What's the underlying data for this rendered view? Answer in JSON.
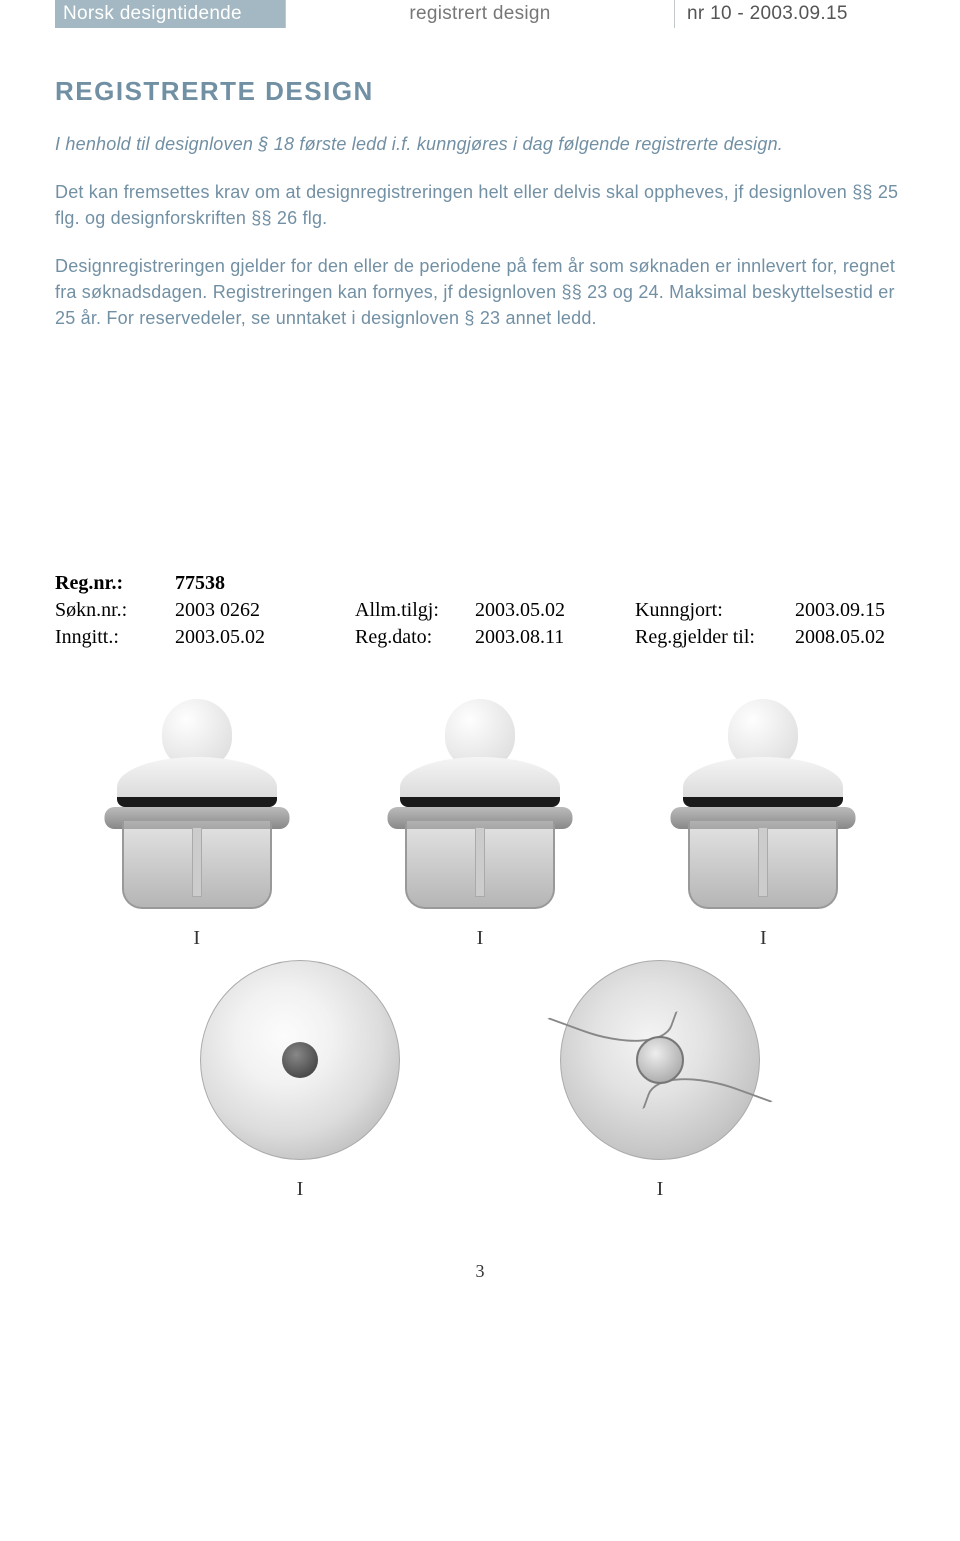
{
  "header": {
    "left": "Norsk designtidende",
    "mid": "registrert design",
    "right": "nr 10 - 2003.09.15"
  },
  "section_title": "REGISTRERTE DESIGN",
  "intro": "I henhold til designloven § 18 første ledd i.f. kunngjøres i dag følgende registrerte design.",
  "para1": "Det kan fremsettes krav om at designregistreringen helt eller delvis skal oppheves, jf designloven §§ 25 flg. og designforskriften §§ 26 flg.",
  "para2": "Designregistreringen gjelder for den eller de periodene på fem år som søknaden er innlevert for, regnet fra søknadsdagen. Registreringen kan fornyes, jf designloven §§ 23 og 24. Maksimal beskyttelsestid er 25 år. For reservedeler, se unntaket i designloven § 23 annet ledd.",
  "reg": {
    "regnr_label": "Reg.nr.:",
    "regnr": "77538",
    "sokn_label": "Søkn.nr.:",
    "sokn": "2003 0262",
    "allm_label": "Allm.tilgj:",
    "allm": "2003.05.02",
    "kunn_label": "Kunngjort:",
    "kunn": "2003.09.15",
    "inng_label": "Inngitt.:",
    "inng": "2003.05.02",
    "regdato_label": "Reg.dato:",
    "regdato": "2003.08.11",
    "gjeld_label": "Reg.gjelder til:",
    "gjeld": "2008.05.02"
  },
  "figure_label": "I",
  "page_number": "3",
  "colors": {
    "header_bg": "#a3b8c2",
    "accent_text": "#7290a4"
  }
}
